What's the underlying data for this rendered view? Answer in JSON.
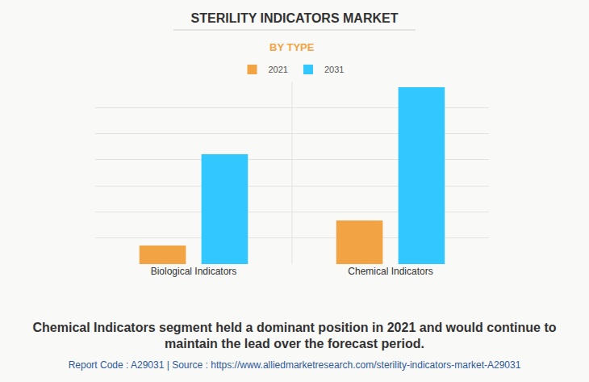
{
  "chart_data": {
    "type": "bar",
    "title": "STERILITY INDICATORS MARKET",
    "subtitle": "BY TYPE",
    "categories": [
      "Biological Indicators",
      "Chemical Indicators"
    ],
    "series": [
      {
        "name": "2021",
        "color": "#f2a444",
        "values": [
          0.71,
          1.67
        ]
      },
      {
        "name": "2031",
        "color": "#33c7ff",
        "values": [
          4.21,
          6.78
        ]
      }
    ],
    "ylim": [
      0,
      7
    ],
    "yticks": [
      0,
      1,
      2,
      3,
      4,
      5,
      6,
      7
    ],
    "grid": true,
    "tick_labels": "x",
    "legend": "top",
    "caption": "Chemical Indicators segment held a dominant position in 2021 and would continue to maintain the lead over the forecast period.",
    "footnote": "Report Code : A29031  |  Source : https://www.alliedmarketresearch.com/sterility-indicators-market-A29031"
  }
}
